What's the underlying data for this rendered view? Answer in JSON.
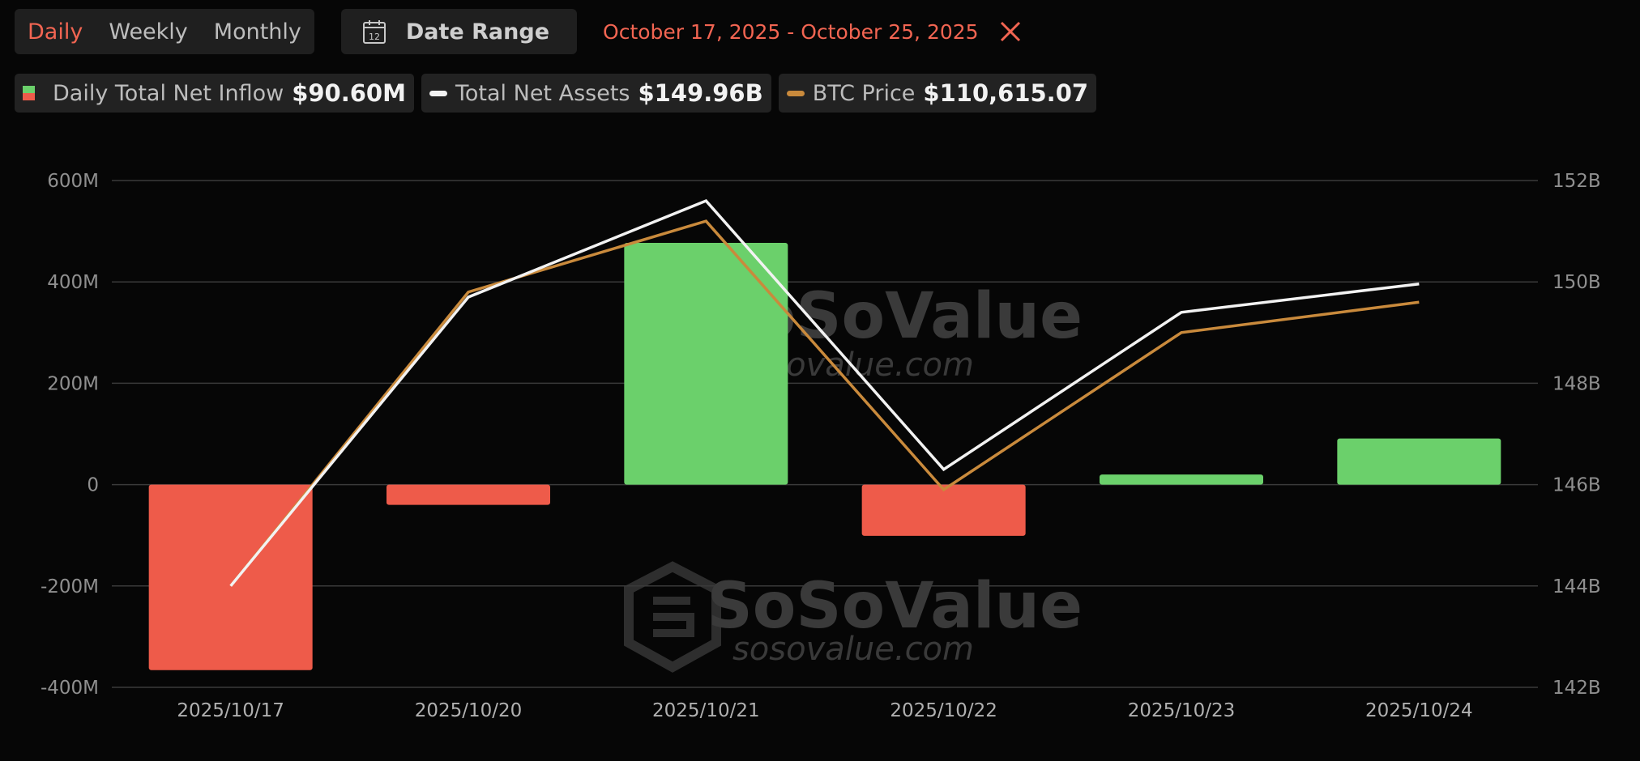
{
  "toolbar": {
    "tabs": [
      {
        "label": "Daily",
        "active": true
      },
      {
        "label": "Weekly",
        "active": false
      },
      {
        "label": "Monthly",
        "active": false
      }
    ],
    "date_range_label": "Date Range",
    "calendar_icon_day": "12",
    "range_text": "October 17, 2025 - October 25, 2025",
    "close_icon": "close-icon"
  },
  "legend": [
    {
      "label": "Daily Total Net Inflow",
      "value": "$90.60M"
    },
    {
      "label": "Total Net Assets",
      "value": "$149.96B"
    },
    {
      "label": "BTC Price",
      "value": "$110,615.07"
    }
  ],
  "colors": {
    "accent": "#f26552",
    "positive": "#6bd06b",
    "negative": "#ee5b4a",
    "net_assets_line": "#f2f2f2",
    "btc_line": "#c98a3c"
  },
  "watermark": {
    "brand": "SoSoValue",
    "url": "sosovalue.com"
  },
  "chart_data": {
    "type": "bar",
    "categories": [
      "2025/10/17",
      "2025/10/20",
      "2025/10/21",
      "2025/10/22",
      "2025/10/23",
      "2025/10/24"
    ],
    "series": [
      {
        "name": "Daily Total Net Inflow",
        "type": "bar",
        "axis": "left",
        "values": [
          -366,
          -40,
          477,
          -101,
          20,
          91
        ]
      },
      {
        "name": "Total Net Assets",
        "type": "line",
        "axis": "right",
        "values": [
          144.0,
          149.7,
          151.6,
          146.3,
          149.4,
          149.96
        ]
      },
      {
        "name": "BTC Price",
        "type": "line",
        "axis": "right",
        "values": [
          144.0,
          149.8,
          151.2,
          145.9,
          149.0,
          149.6
        ]
      }
    ],
    "left_axis": {
      "ylim": [
        -400,
        600
      ],
      "ticks": [
        "600M",
        "400M",
        "200M",
        "0",
        "-200M",
        "-400M"
      ],
      "tick_values": [
        600,
        400,
        200,
        0,
        -200,
        -400
      ]
    },
    "right_axis": {
      "ylim": [
        142,
        152
      ],
      "ticks": [
        "152B",
        "150B",
        "148B",
        "146B",
        "144B",
        "142B"
      ],
      "tick_values": [
        152,
        150,
        148,
        146,
        144,
        142
      ]
    },
    "grid": true,
    "legend_position": "top-left"
  }
}
